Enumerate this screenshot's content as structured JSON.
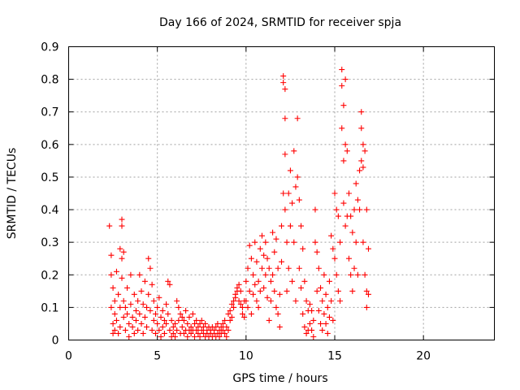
{
  "chart_data": {
    "type": "scatter",
    "title": "Day 166 of 2024, SRMTID for receiver spja",
    "xlabel": "GPS time / hours",
    "ylabel": "SRMTID / TECUs",
    "xlim": [
      0,
      24
    ],
    "ylim": [
      0,
      0.9
    ],
    "xticks": [
      "0",
      "5",
      "10",
      "15",
      "20"
    ],
    "yticks": [
      "0",
      "0.1",
      "0.2",
      "0.3",
      "0.4",
      "0.5",
      "0.6",
      "0.7",
      "0.8",
      "0.9"
    ],
    "grid": true,
    "marker": "plus",
    "color": "#ff0000",
    "points": [
      [
        2.3,
        0.35
      ],
      [
        2.4,
        0.26
      ],
      [
        2.4,
        0.2
      ],
      [
        2.4,
        0.1
      ],
      [
        2.5,
        0.16
      ],
      [
        2.5,
        0.05
      ],
      [
        2.5,
        0.02
      ],
      [
        2.6,
        0.12
      ],
      [
        2.6,
        0.08
      ],
      [
        2.6,
        0.03
      ],
      [
        2.7,
        0.21
      ],
      [
        2.7,
        0.06
      ],
      [
        2.8,
        0.14
      ],
      [
        2.8,
        0.02
      ],
      [
        2.9,
        0.28
      ],
      [
        2.9,
        0.1
      ],
      [
        2.9,
        0.04
      ],
      [
        3.0,
        0.37
      ],
      [
        3.0,
        0.35
      ],
      [
        3.0,
        0.25
      ],
      [
        3.0,
        0.19
      ],
      [
        3.1,
        0.27
      ],
      [
        3.1,
        0.12
      ],
      [
        3.1,
        0.07
      ],
      [
        3.2,
        0.1
      ],
      [
        3.2,
        0.03
      ],
      [
        3.3,
        0.16
      ],
      [
        3.3,
        0.08
      ],
      [
        3.4,
        0.05
      ],
      [
        3.4,
        0.01
      ],
      [
        3.5,
        0.2
      ],
      [
        3.5,
        0.11
      ],
      [
        3.6,
        0.07
      ],
      [
        3.6,
        0.04
      ],
      [
        3.7,
        0.14
      ],
      [
        3.7,
        0.02
      ],
      [
        3.8,
        0.09
      ],
      [
        3.8,
        0.06
      ],
      [
        3.9,
        0.12
      ],
      [
        3.9,
        0.03
      ],
      [
        4.0,
        0.2
      ],
      [
        4.0,
        0.08
      ],
      [
        4.1,
        0.15
      ],
      [
        4.1,
        0.05
      ],
      [
        4.2,
        0.11
      ],
      [
        4.2,
        0.02
      ],
      [
        4.3,
        0.18
      ],
      [
        4.3,
        0.07
      ],
      [
        4.4,
        0.1
      ],
      [
        4.4,
        0.04
      ],
      [
        4.5,
        0.25
      ],
      [
        4.5,
        0.14
      ],
      [
        4.6,
        0.22
      ],
      [
        4.6,
        0.09
      ],
      [
        4.7,
        0.17
      ],
      [
        4.7,
        0.03
      ],
      [
        4.8,
        0.12
      ],
      [
        4.8,
        0.06
      ],
      [
        4.9,
        0.08
      ],
      [
        4.9,
        0.02
      ],
      [
        5.0,
        0.1
      ],
      [
        5.0,
        0.05
      ],
      [
        5.1,
        0.13
      ],
      [
        5.1,
        0.03
      ],
      [
        5.2,
        0.07
      ],
      [
        5.2,
        0.01
      ],
      [
        5.3,
        0.09
      ],
      [
        5.3,
        0.04
      ],
      [
        5.4,
        0.06
      ],
      [
        5.4,
        0.02
      ],
      [
        5.5,
        0.11
      ],
      [
        5.5,
        0.05
      ],
      [
        5.6,
        0.18
      ],
      [
        5.6,
        0.08
      ],
      [
        5.7,
        0.17
      ],
      [
        5.7,
        0.03
      ],
      [
        5.8,
        0.06
      ],
      [
        5.8,
        0.01
      ],
      [
        5.9,
        0.04
      ],
      [
        5.9,
        0.02
      ],
      [
        6.0,
        0.05
      ],
      [
        6.0,
        0.01
      ],
      [
        6.1,
        0.12
      ],
      [
        6.1,
        0.03
      ],
      [
        6.2,
        0.1
      ],
      [
        6.2,
        0.06
      ],
      [
        6.3,
        0.08
      ],
      [
        6.3,
        0.02
      ],
      [
        6.4,
        0.07
      ],
      [
        6.4,
        0.04
      ],
      [
        6.5,
        0.06
      ],
      [
        6.5,
        0.02
      ],
      [
        6.6,
        0.09
      ],
      [
        6.6,
        0.03
      ],
      [
        6.7,
        0.05
      ],
      [
        6.7,
        0.01
      ],
      [
        6.8,
        0.07
      ],
      [
        6.8,
        0.03
      ],
      [
        6.9,
        0.04
      ],
      [
        6.9,
        0.02
      ],
      [
        7.0,
        0.08
      ],
      [
        7.0,
        0.03
      ],
      [
        7.1,
        0.05
      ],
      [
        7.1,
        0.01
      ],
      [
        7.2,
        0.06
      ],
      [
        7.2,
        0.03
      ],
      [
        7.3,
        0.04
      ],
      [
        7.3,
        0.02
      ],
      [
        7.4,
        0.05
      ],
      [
        7.4,
        0.01
      ],
      [
        7.5,
        0.03
      ],
      [
        7.5,
        0.06
      ],
      [
        7.6,
        0.04
      ],
      [
        7.6,
        0.02
      ],
      [
        7.7,
        0.05
      ],
      [
        7.7,
        0.01
      ],
      [
        7.8,
        0.03
      ],
      [
        7.8,
        0.02
      ],
      [
        7.9,
        0.04
      ],
      [
        7.9,
        0.01
      ],
      [
        8.0,
        0.03
      ],
      [
        8.0,
        0.02
      ],
      [
        8.1,
        0.04
      ],
      [
        8.1,
        0.01
      ],
      [
        8.2,
        0.03
      ],
      [
        8.2,
        0.02
      ],
      [
        8.3,
        0.04
      ],
      [
        8.3,
        0.01
      ],
      [
        8.4,
        0.05
      ],
      [
        8.4,
        0.02
      ],
      [
        8.5,
        0.03
      ],
      [
        8.5,
        0.01
      ],
      [
        8.6,
        0.04
      ],
      [
        8.6,
        0.02
      ],
      [
        8.7,
        0.05
      ],
      [
        8.7,
        0.03
      ],
      [
        8.8,
        0.06
      ],
      [
        8.8,
        0.02
      ],
      [
        8.9,
        0.04
      ],
      [
        8.9,
        0.01
      ],
      [
        9.0,
        0.08
      ],
      [
        9.0,
        0.03
      ],
      [
        9.1,
        0.09
      ],
      [
        9.1,
        0.06
      ],
      [
        9.2,
        0.11
      ],
      [
        9.2,
        0.07
      ],
      [
        9.3,
        0.12
      ],
      [
        9.3,
        0.1
      ],
      [
        9.4,
        0.14
      ],
      [
        9.4,
        0.13
      ],
      [
        9.5,
        0.16
      ],
      [
        9.5,
        0.15
      ],
      [
        9.6,
        0.17
      ],
      [
        9.6,
        0.12
      ],
      [
        9.7,
        0.15
      ],
      [
        9.7,
        0.11
      ],
      [
        9.8,
        0.1
      ],
      [
        9.8,
        0.08
      ],
      [
        9.9,
        0.12
      ],
      [
        9.9,
        0.07
      ],
      [
        10.0,
        0.18
      ],
      [
        10.0,
        0.12
      ],
      [
        10.1,
        0.22
      ],
      [
        10.1,
        0.1
      ],
      [
        10.2,
        0.29
      ],
      [
        10.2,
        0.15
      ],
      [
        10.3,
        0.25
      ],
      [
        10.3,
        0.08
      ],
      [
        10.4,
        0.2
      ],
      [
        10.4,
        0.14
      ],
      [
        10.5,
        0.3
      ],
      [
        10.5,
        0.17
      ],
      [
        10.6,
        0.24
      ],
      [
        10.6,
        0.12
      ],
      [
        10.7,
        0.18
      ],
      [
        10.7,
        0.1
      ],
      [
        10.8,
        0.15
      ],
      [
        10.8,
        0.28
      ],
      [
        10.9,
        0.32
      ],
      [
        10.9,
        0.22
      ],
      [
        11.0,
        0.26
      ],
      [
        11.0,
        0.16
      ],
      [
        11.1,
        0.3
      ],
      [
        11.1,
        0.2
      ],
      [
        11.2,
        0.25
      ],
      [
        11.2,
        0.13
      ],
      [
        11.3,
        0.22
      ],
      [
        11.3,
        0.06
      ],
      [
        11.4,
        0.18
      ],
      [
        11.4,
        0.12
      ],
      [
        11.5,
        0.33
      ],
      [
        11.5,
        0.2
      ],
      [
        11.6,
        0.27
      ],
      [
        11.6,
        0.15
      ],
      [
        11.7,
        0.31
      ],
      [
        11.7,
        0.1
      ],
      [
        11.8,
        0.22
      ],
      [
        11.8,
        0.08
      ],
      [
        11.9,
        0.14
      ],
      [
        11.9,
        0.04
      ],
      [
        12.0,
        0.35
      ],
      [
        12.0,
        0.24
      ],
      [
        12.1,
        0.45
      ],
      [
        12.1,
        0.81
      ],
      [
        12.1,
        0.79
      ],
      [
        12.2,
        0.77
      ],
      [
        12.2,
        0.68
      ],
      [
        12.2,
        0.57
      ],
      [
        12.2,
        0.4
      ],
      [
        12.3,
        0.3
      ],
      [
        12.3,
        0.15
      ],
      [
        12.4,
        0.45
      ],
      [
        12.4,
        0.22
      ],
      [
        12.5,
        0.52
      ],
      [
        12.5,
        0.35
      ],
      [
        12.6,
        0.42
      ],
      [
        12.6,
        0.18
      ],
      [
        12.7,
        0.58
      ],
      [
        12.7,
        0.3
      ],
      [
        12.8,
        0.47
      ],
      [
        12.8,
        0.12
      ],
      [
        12.9,
        0.68
      ],
      [
        12.9,
        0.5
      ],
      [
        13.0,
        0.43
      ],
      [
        13.0,
        0.22
      ],
      [
        13.1,
        0.35
      ],
      [
        13.1,
        0.16
      ],
      [
        13.2,
        0.28
      ],
      [
        13.2,
        0.08
      ],
      [
        13.3,
        0.18
      ],
      [
        13.3,
        0.04
      ],
      [
        13.4,
        0.12
      ],
      [
        13.4,
        0.02
      ],
      [
        13.5,
        0.09
      ],
      [
        13.5,
        0.03
      ],
      [
        13.6,
        0.11
      ],
      [
        13.6,
        0.05
      ],
      [
        13.7,
        0.09
      ],
      [
        13.7,
        0.03
      ],
      [
        13.8,
        0.06
      ],
      [
        13.8,
        0.01
      ],
      [
        13.9,
        0.4
      ],
      [
        13.9,
        0.3
      ],
      [
        14.0,
        0.27
      ],
      [
        14.0,
        0.15
      ],
      [
        14.1,
        0.22
      ],
      [
        14.1,
        0.09
      ],
      [
        14.2,
        0.16
      ],
      [
        14.2,
        0.05
      ],
      [
        14.3,
        0.12
      ],
      [
        14.3,
        0.03
      ],
      [
        14.4,
        0.2
      ],
      [
        14.4,
        0.08
      ],
      [
        14.5,
        0.14
      ],
      [
        14.5,
        0.05
      ],
      [
        14.6,
        0.1
      ],
      [
        14.6,
        0.02
      ],
      [
        14.7,
        0.18
      ],
      [
        14.7,
        0.07
      ],
      [
        14.8,
        0.32
      ],
      [
        14.8,
        0.12
      ],
      [
        14.9,
        0.28
      ],
      [
        14.9,
        0.06
      ],
      [
        15.0,
        0.45
      ],
      [
        15.0,
        0.25
      ],
      [
        15.1,
        0.4
      ],
      [
        15.1,
        0.2
      ],
      [
        15.2,
        0.38
      ],
      [
        15.2,
        0.15
      ],
      [
        15.3,
        0.3
      ],
      [
        15.3,
        0.12
      ],
      [
        15.4,
        0.83
      ],
      [
        15.4,
        0.78
      ],
      [
        15.4,
        0.65
      ],
      [
        15.5,
        0.72
      ],
      [
        15.5,
        0.55
      ],
      [
        15.5,
        0.42
      ],
      [
        15.6,
        0.8
      ],
      [
        15.6,
        0.6
      ],
      [
        15.6,
        0.35
      ],
      [
        15.7,
        0.58
      ],
      [
        15.7,
        0.38
      ],
      [
        15.8,
        0.45
      ],
      [
        15.8,
        0.25
      ],
      [
        15.9,
        0.38
      ],
      [
        15.9,
        0.2
      ],
      [
        16.0,
        0.33
      ],
      [
        16.0,
        0.15
      ],
      [
        16.1,
        0.4
      ],
      [
        16.1,
        0.22
      ],
      [
        16.2,
        0.48
      ],
      [
        16.2,
        0.3
      ],
      [
        16.3,
        0.43
      ],
      [
        16.3,
        0.2
      ],
      [
        16.4,
        0.52
      ],
      [
        16.4,
        0.4
      ],
      [
        16.5,
        0.7
      ],
      [
        16.5,
        0.65
      ],
      [
        16.5,
        0.55
      ],
      [
        16.6,
        0.6
      ],
      [
        16.6,
        0.53
      ],
      [
        16.6,
        0.3
      ],
      [
        16.7,
        0.58
      ],
      [
        16.7,
        0.2
      ],
      [
        16.8,
        0.4
      ],
      [
        16.8,
        0.15
      ],
      [
        16.8,
        0.1
      ],
      [
        16.9,
        0.28
      ],
      [
        16.9,
        0.14
      ]
    ]
  }
}
